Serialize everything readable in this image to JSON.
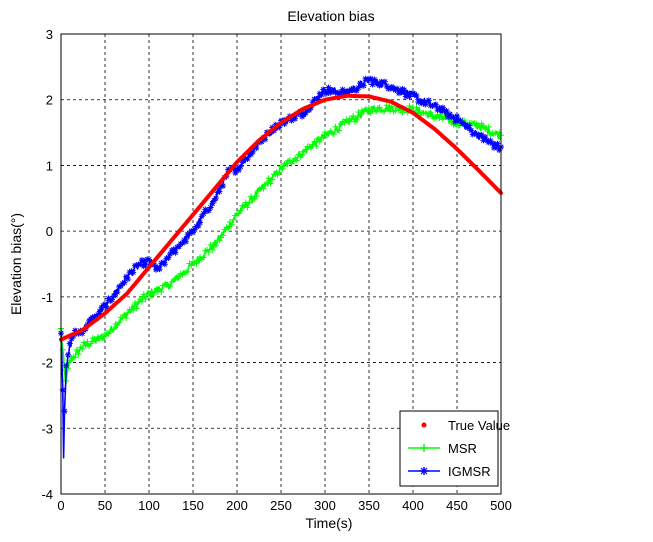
{
  "chart_data": {
    "type": "line",
    "title": "Elevation bias",
    "xlabel": "Time(s)",
    "ylabel": "Elevation bias(°)",
    "xlim": [
      0,
      500
    ],
    "ylim": [
      -4,
      3
    ],
    "xticks": [
      0,
      50,
      100,
      150,
      200,
      250,
      300,
      350,
      400,
      450,
      500
    ],
    "yticks": [
      3,
      2,
      1,
      0,
      -1,
      -2,
      -3,
      -4
    ],
    "grid": true,
    "legend_position": "bottom-right",
    "series": [
      {
        "name": "True Value",
        "color": "#ff0000",
        "marker": "dot",
        "x": [
          0,
          25,
          50,
          75,
          100,
          125,
          150,
          175,
          200,
          225,
          250,
          275,
          300,
          325,
          350,
          375,
          400,
          425,
          450,
          475,
          500
        ],
        "y": [
          -1.65,
          -1.5,
          -1.25,
          -0.95,
          -0.55,
          -0.15,
          0.25,
          0.65,
          1.05,
          1.38,
          1.65,
          1.86,
          2.0,
          2.06,
          2.05,
          1.97,
          1.8,
          1.55,
          1.25,
          0.92,
          0.58
        ]
      },
      {
        "name": "MSR",
        "color": "#00ff00",
        "marker": "plus",
        "x": [
          0,
          5,
          10,
          15,
          25,
          50,
          75,
          100,
          125,
          150,
          175,
          200,
          225,
          250,
          275,
          300,
          325,
          350,
          375,
          400,
          425,
          450,
          475,
          500
        ],
        "y": [
          -1.5,
          -2.3,
          -2.0,
          -1.9,
          -1.75,
          -1.6,
          -1.25,
          -0.95,
          -0.8,
          -0.5,
          -0.2,
          0.25,
          0.6,
          0.95,
          1.2,
          1.45,
          1.65,
          1.85,
          1.88,
          1.85,
          1.75,
          1.65,
          1.6,
          1.45
        ]
      },
      {
        "name": "IGMSR",
        "color": "#0000ff",
        "marker": "star",
        "x": [
          0,
          2,
          3,
          4,
          6,
          10,
          15,
          25,
          50,
          75,
          90,
          100,
          110,
          125,
          150,
          175,
          190,
          200,
          210,
          225,
          250,
          275,
          300,
          325,
          350,
          375,
          400,
          425,
          450,
          475,
          500
        ],
        "y": [
          -1.5,
          -2.4,
          -3.4,
          -2.7,
          -2.1,
          -1.75,
          -1.55,
          -1.5,
          -1.15,
          -0.7,
          -0.5,
          -0.45,
          -0.6,
          -0.35,
          0.0,
          0.5,
          0.9,
          0.95,
          1.1,
          1.35,
          1.65,
          1.8,
          2.15,
          2.1,
          2.3,
          2.2,
          2.05,
          1.9,
          1.7,
          1.45,
          1.25
        ]
      }
    ]
  }
}
